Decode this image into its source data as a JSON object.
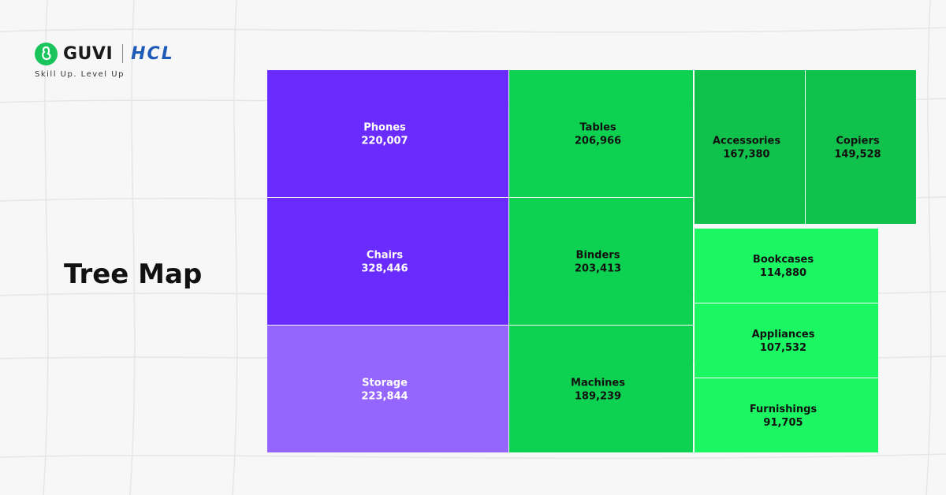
{
  "logo": {
    "brand": "GUVI",
    "partner": "HCL",
    "tagline": "Skill Up. Level Up"
  },
  "heading": "Tree Map",
  "chart_data": {
    "type": "treemap",
    "title": "",
    "cells": [
      {
        "label": "Phones",
        "value": 220007,
        "display": "220,007",
        "color": "#6a2bff",
        "text_color": "#ffffff"
      },
      {
        "label": "Chairs",
        "value": 328446,
        "display": "328,446",
        "color": "#6a2bff",
        "text_color": "#ffffff"
      },
      {
        "label": "Storage",
        "value": 223844,
        "display": "223,844",
        "color": "#9466ff",
        "text_color": "#ffffff"
      },
      {
        "label": "Tables",
        "value": 206966,
        "display": "206,966",
        "color": "#0dd150",
        "text_color": "#111111"
      },
      {
        "label": "Binders",
        "value": 203413,
        "display": "203,413",
        "color": "#0dd150",
        "text_color": "#111111"
      },
      {
        "label": "Machines",
        "value": 189239,
        "display": "189,239",
        "color": "#0dd150",
        "text_color": "#111111"
      },
      {
        "label": "Accessories",
        "value": 167380,
        "display": "167,380",
        "color": "#10c24c",
        "text_color": "#111111"
      },
      {
        "label": "Copiers",
        "value": 149528,
        "display": "149,528",
        "color": "#10c24c",
        "text_color": "#111111"
      },
      {
        "label": "Bookcases",
        "value": 114880,
        "display": "114,880",
        "color": "#1af763",
        "text_color": "#111111"
      },
      {
        "label": "Appliances",
        "value": 107532,
        "display": "107,532",
        "color": "#1af763",
        "text_color": "#111111"
      },
      {
        "label": "Furnishings",
        "value": 91705,
        "display": "91,705",
        "color": "#1af763",
        "text_color": "#111111"
      }
    ]
  }
}
